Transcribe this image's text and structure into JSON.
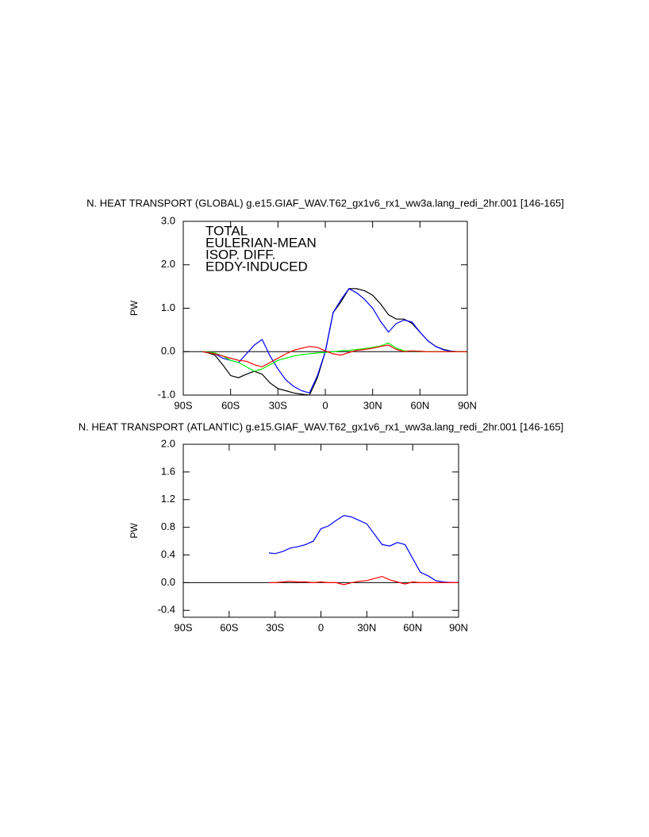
{
  "chart_data": [
    {
      "type": "line",
      "title": "N. HEAT TRANSPORT (GLOBAL) g.e15.GIAF_WAV.T62_gx1v6_rx1_ww3a.lang_redi_2hr.001 [146-165]",
      "y_label": "PW",
      "x": [
        -78,
        -75,
        -70,
        -65,
        -60,
        -55,
        -50,
        -45,
        -40,
        -35,
        -30,
        -25,
        -20,
        -15,
        -10,
        -5,
        0,
        5,
        10,
        15,
        20,
        25,
        30,
        35,
        40,
        45,
        50,
        55,
        60,
        65,
        70,
        75,
        80,
        85,
        90
      ],
      "series": [
        {
          "name": "TOTAL",
          "color": "#000000",
          "values": [
            0,
            -0.02,
            -0.08,
            -0.3,
            -0.55,
            -0.6,
            -0.52,
            -0.45,
            -0.52,
            -0.72,
            -0.85,
            -0.9,
            -0.95,
            -0.98,
            -1.0,
            -0.6,
            0,
            0.9,
            1.15,
            1.45,
            1.45,
            1.4,
            1.3,
            1.1,
            0.85,
            0.75,
            0.75,
            0.65,
            0.45,
            0.25,
            0.12,
            0.05,
            0.01,
            0,
            0
          ]
        },
        {
          "name": "EULERIAN-MEAN",
          "color": "#0000ff",
          "values": [
            0,
            -0.02,
            -0.05,
            -0.15,
            -0.2,
            -0.25,
            -0.05,
            0.15,
            0.28,
            -0.1,
            -0.4,
            -0.65,
            -0.8,
            -0.9,
            -0.95,
            -0.55,
            0,
            0.9,
            1.2,
            1.45,
            1.35,
            1.2,
            1.0,
            0.7,
            0.45,
            0.65,
            0.73,
            0.68,
            0.45,
            0.25,
            0.12,
            0.04,
            0.01,
            0,
            0
          ]
        },
        {
          "name": "ISOP. DIFF.",
          "color": "#00ff00",
          "values": [
            0,
            -0.01,
            -0.03,
            -0.1,
            -0.2,
            -0.25,
            -0.35,
            -0.45,
            -0.4,
            -0.3,
            -0.2,
            -0.15,
            -0.1,
            -0.07,
            -0.05,
            -0.03,
            -0.02,
            0,
            0.02,
            0.03,
            0.05,
            0.07,
            0.1,
            0.13,
            0.2,
            0.08,
            0.02,
            0.01,
            0.01,
            0,
            0,
            0,
            0,
            0,
            0
          ]
        },
        {
          "name": "EDDY-INDUCED",
          "color": "#ff0000",
          "values": [
            0,
            -0.02,
            -0.05,
            -0.1,
            -0.15,
            -0.2,
            -0.22,
            -0.3,
            -0.35,
            -0.25,
            -0.15,
            -0.05,
            0.03,
            0.08,
            0.12,
            0.1,
            0.02,
            -0.05,
            -0.08,
            -0.02,
            0.03,
            0.05,
            0.08,
            0.12,
            0.15,
            0.05,
            0,
            0.02,
            0.01,
            0,
            0,
            0,
            0,
            0,
            0
          ]
        }
      ],
      "xlim": [
        -90,
        90
      ],
      "xticks": [
        {
          "value": -90,
          "label": "90S"
        },
        {
          "value": -60,
          "label": "60S"
        },
        {
          "value": -30,
          "label": "30S"
        },
        0,
        {
          "value": 30,
          "label": "30N"
        },
        {
          "value": 60,
          "label": "60N"
        },
        {
          "value": 90,
          "label": "90N"
        }
      ],
      "ylim": [
        -1,
        3
      ],
      "yticks": [
        {
          "value": -1,
          "label": "-1.0"
        },
        {
          "value": 0,
          "label": "0.0"
        },
        {
          "value": 1,
          "label": "1.0"
        },
        {
          "value": 2,
          "label": "2.0"
        },
        {
          "value": 3,
          "label": "3.0"
        }
      ],
      "legend": "top-left"
    },
    {
      "type": "line",
      "title": "N. HEAT TRANSPORT (ATLANTIC) g.e15.GIAF_WAV.T62_gx1v6_rx1_ww3a.lang_redi_2hr.001 [146-165]",
      "y_label": "PW",
      "x": [
        -34,
        -30,
        -25,
        -20,
        -15,
        -10,
        -5,
        0,
        5,
        10,
        15,
        20,
        25,
        30,
        35,
        40,
        45,
        50,
        55,
        60,
        65,
        70,
        75,
        80,
        85,
        90
      ],
      "series": [
        {
          "color": "#0000ff",
          "values": [
            0.43,
            0.42,
            0.45,
            0.5,
            0.52,
            0.55,
            0.6,
            0.78,
            0.82,
            0.9,
            0.97,
            0.95,
            0.9,
            0.85,
            0.7,
            0.55,
            0.53,
            0.58,
            0.55,
            0.35,
            0.15,
            0.1,
            0.03,
            0.01,
            0,
            0
          ]
        },
        {
          "color": "#ff0000",
          "values": [
            0,
            0,
            0.01,
            0.02,
            0.01,
            0.01,
            0,
            0.01,
            0,
            0,
            -0.03,
            0,
            0.02,
            0.03,
            0.06,
            0.09,
            0.04,
            0.01,
            -0.02,
            0.01,
            0,
            0,
            0,
            0,
            0,
            0
          ]
        }
      ],
      "xlim": [
        -90,
        90
      ],
      "xticks": [
        {
          "value": -90,
          "label": "90S"
        },
        {
          "value": -60,
          "label": "60S"
        },
        {
          "value": -30,
          "label": "30S"
        },
        0,
        {
          "value": 30,
          "label": "30N"
        },
        {
          "value": 60,
          "label": "60N"
        },
        {
          "value": 90,
          "label": "90N"
        }
      ],
      "ylim": [
        -0.5,
        2
      ],
      "yticks": [
        {
          "value": -0.4,
          "label": "-0.4"
        },
        {
          "value": 0,
          "label": "0.0"
        },
        {
          "value": 0.4,
          "label": "0.4"
        },
        {
          "value": 0.8,
          "label": "0.8"
        },
        {
          "value": 1.2,
          "label": "1.2"
        },
        {
          "value": 1.6,
          "label": "1.6"
        },
        {
          "value": 2,
          "label": "2.0"
        }
      ]
    }
  ]
}
